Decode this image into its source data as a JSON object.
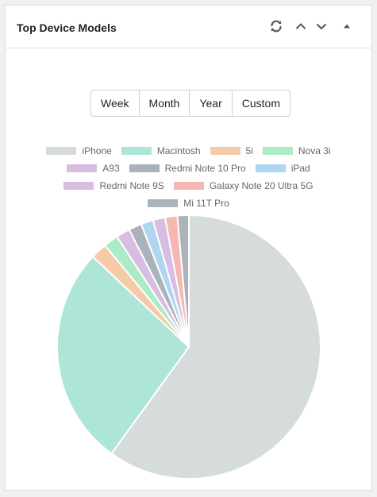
{
  "widget": {
    "title": "Top Device Models",
    "refresh_icon": "refresh-icon",
    "up_icon": "chevron-up-icon",
    "down_icon": "chevron-down-icon",
    "toggle_icon": "caret-up-icon"
  },
  "range": {
    "options": [
      "Week",
      "Month",
      "Year",
      "Custom"
    ]
  },
  "colors": {
    "slice_border": "#ffffff",
    "header_icon": "#50575e"
  },
  "chart_data": {
    "type": "pie",
    "series": [
      {
        "name": "iPhone",
        "value": 60,
        "color": "#d6dbdb"
      },
      {
        "name": "Macintosh",
        "value": 27,
        "color": "#aee5d9"
      },
      {
        "name": "5i",
        "value": 2,
        "color": "#f5cba7"
      },
      {
        "name": "Nova 3i",
        "value": 1.8,
        "color": "#abebc6"
      },
      {
        "name": "A93",
        "value": 1.7,
        "color": "#d7bde2"
      },
      {
        "name": "Redmi Note 10 Pro",
        "value": 1.6,
        "color": "#abb2b9"
      },
      {
        "name": "iPad",
        "value": 1.5,
        "color": "#aed6f1"
      },
      {
        "name": "Redmi Note 9S",
        "value": 1.5,
        "color": "#d7bde2"
      },
      {
        "name": "Galaxy Note 20 Ultra 5G",
        "value": 1.5,
        "color": "#f5b7b1"
      },
      {
        "name": "Mi 11T Pro",
        "value": 1.4,
        "color": "#abb2b9"
      }
    ],
    "legend_placement": "top"
  }
}
